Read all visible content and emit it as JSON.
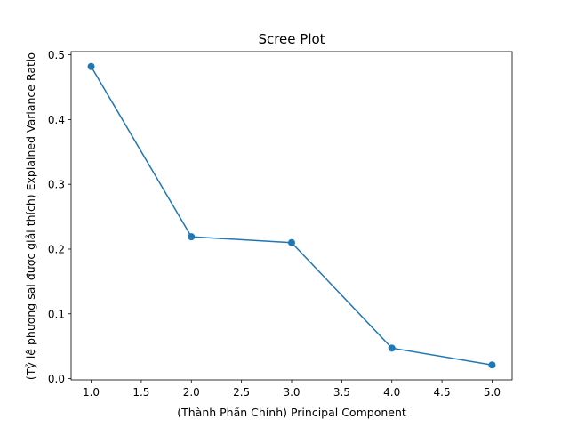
{
  "chart_data": {
    "type": "line",
    "title": "Scree Plot",
    "xlabel": "(Thành Phần Chính) Principal Component",
    "ylabel": "(Tỷ lệ phương sai được giải thích) Explained Variance Ratio",
    "x": [
      1,
      2,
      3,
      4,
      5
    ],
    "series": [
      {
        "values": [
          0.482,
          0.219,
          0.21,
          0.047,
          0.021
        ]
      }
    ],
    "xlim": [
      0.8,
      5.2
    ],
    "ylim": [
      -0.002,
      0.505
    ],
    "xticks": [
      1.0,
      1.5,
      2.0,
      2.5,
      3.0,
      3.5,
      4.0,
      4.5,
      5.0
    ],
    "xtick_labels": [
      "1.0",
      "1.5",
      "2.0",
      "2.5",
      "3.0",
      "3.5",
      "4.0",
      "4.5",
      "5.0"
    ],
    "yticks": [
      0.0,
      0.1,
      0.2,
      0.3,
      0.4,
      0.5
    ],
    "ytick_labels": [
      "0.0",
      "0.1",
      "0.2",
      "0.3",
      "0.4",
      "0.5"
    ],
    "grid": false,
    "marker": "circle",
    "line_color": "#1f77b4"
  }
}
